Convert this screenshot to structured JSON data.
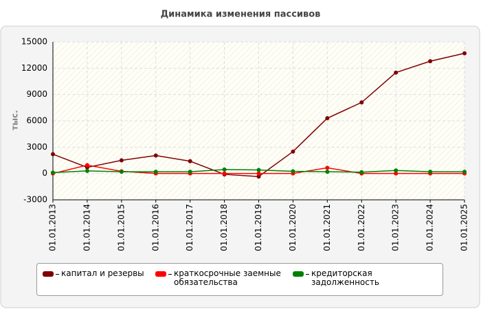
{
  "chart_data": {
    "type": "line",
    "title": "Динамика изменения пассивов",
    "y_label": "тыс.",
    "categories": [
      "01.01.2013",
      "01.01.2014",
      "01.01.2015",
      "01.01.2016",
      "01.01.2017",
      "01.01.2018",
      "01.01.2019",
      "01.01.2020",
      "01.01.2021",
      "01.01.2022",
      "01.01.2023",
      "01.01.2024",
      "01.01.2025"
    ],
    "series": [
      {
        "name": "капитал и резервы",
        "color": "#800000",
        "values": [
          2200,
          700,
          1500,
          2050,
          1400,
          -100,
          -350,
          2500,
          6300,
          8100,
          11500,
          12800,
          13700
        ]
      },
      {
        "name": "краткосрочные заемные обязательства",
        "color": "#ff0000",
        "values": [
          0,
          950,
          250,
          0,
          0,
          0,
          0,
          0,
          650,
          0,
          0,
          0,
          0
        ]
      },
      {
        "name": "кредиторская задолженность",
        "color": "#008000",
        "values": [
          100,
          300,
          200,
          200,
          200,
          450,
          400,
          250,
          200,
          150,
          350,
          200,
          200
        ]
      }
    ],
    "ylim": [
      -3000,
      15000
    ],
    "yticks": [
      -3000,
      0,
      3000,
      6000,
      9000,
      12000,
      15000
    ],
    "grid": true
  }
}
